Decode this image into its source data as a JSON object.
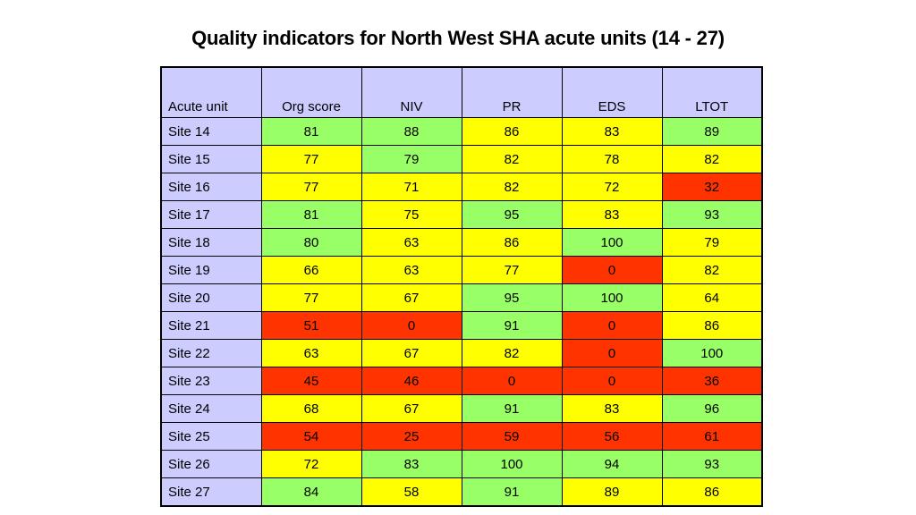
{
  "title": "Quality indicators for North West SHA acute units (14 - 27)",
  "colors": {
    "header": "#ccccff",
    "green": "#99ff66",
    "yellow": "#ffff00",
    "red": "#ff3300"
  },
  "table": {
    "headers": [
      "Acute unit",
      "Org score",
      "NIV",
      "PR",
      "EDS",
      "LTOT"
    ],
    "rows": [
      {
        "site": "Site 14",
        "values": [
          "81",
          "88",
          "86",
          "83",
          "89"
        ],
        "status": [
          "green",
          "green",
          "yellow",
          "yellow",
          "green"
        ]
      },
      {
        "site": "Site 15",
        "values": [
          "77",
          "79",
          "82",
          "78",
          "82"
        ],
        "status": [
          "yellow",
          "green",
          "yellow",
          "yellow",
          "yellow"
        ]
      },
      {
        "site": "Site 16",
        "values": [
          "77",
          "71",
          "82",
          "72",
          "32"
        ],
        "status": [
          "yellow",
          "yellow",
          "yellow",
          "yellow",
          "red"
        ]
      },
      {
        "site": "Site 17",
        "values": [
          "81",
          "75",
          "95",
          "83",
          "93"
        ],
        "status": [
          "green",
          "yellow",
          "green",
          "yellow",
          "green"
        ]
      },
      {
        "site": "Site 18",
        "values": [
          "80",
          "63",
          "86",
          "100",
          "79"
        ],
        "status": [
          "green",
          "yellow",
          "yellow",
          "green",
          "yellow"
        ]
      },
      {
        "site": "Site 19",
        "values": [
          "66",
          "63",
          "77",
          "0",
          "82"
        ],
        "status": [
          "yellow",
          "yellow",
          "yellow",
          "red",
          "yellow"
        ]
      },
      {
        "site": "Site 20",
        "values": [
          "77",
          "67",
          "95",
          "100",
          "64"
        ],
        "status": [
          "yellow",
          "yellow",
          "green",
          "green",
          "yellow"
        ]
      },
      {
        "site": "Site 21",
        "values": [
          "51",
          "0",
          "91",
          "0",
          "86"
        ],
        "status": [
          "red",
          "red",
          "green",
          "red",
          "yellow"
        ]
      },
      {
        "site": "Site 22",
        "values": [
          "63",
          "67",
          "82",
          "0",
          "100"
        ],
        "status": [
          "yellow",
          "yellow",
          "yellow",
          "red",
          "green"
        ]
      },
      {
        "site": "Site 23",
        "values": [
          "45",
          "46",
          "0",
          "0",
          "36"
        ],
        "status": [
          "red",
          "red",
          "red",
          "red",
          "red"
        ]
      },
      {
        "site": "Site 24",
        "values": [
          "68",
          "67",
          "91",
          "83",
          "96"
        ],
        "status": [
          "yellow",
          "yellow",
          "green",
          "yellow",
          "green"
        ]
      },
      {
        "site": "Site 25",
        "values": [
          "54",
          "25",
          "59",
          "56",
          "61"
        ],
        "status": [
          "red",
          "red",
          "red",
          "red",
          "red"
        ]
      },
      {
        "site": "Site 26",
        "values": [
          "72",
          "83",
          "100",
          "94",
          "93"
        ],
        "status": [
          "yellow",
          "green",
          "green",
          "green",
          "green"
        ]
      },
      {
        "site": "Site 27",
        "values": [
          "84",
          "58",
          "91",
          "89",
          "86"
        ],
        "status": [
          "green",
          "yellow",
          "green",
          "yellow",
          "yellow"
        ]
      }
    ]
  }
}
